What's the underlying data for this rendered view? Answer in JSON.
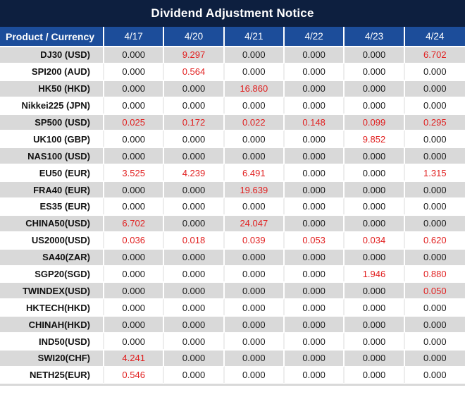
{
  "title": "Dividend Adjustment Notice",
  "colors": {
    "title_bar_bg": "#0d1f3f",
    "header_row_bg": "#1c4d9a",
    "alt_row_bg": "#d9d9d9",
    "nonzero_value_red": "#e11f1f",
    "zero_value_text": "#1a1a1a"
  },
  "table": {
    "product_header": "Product / Currency",
    "date_headers": [
      "4/17",
      "4/20",
      "4/21",
      "4/22",
      "4/23",
      "4/24"
    ],
    "rows": [
      {
        "product": "DJ30 (USD)",
        "values": [
          "0.000",
          "9.297",
          "0.000",
          "0.000",
          "0.000",
          "6.702"
        ]
      },
      {
        "product": "SPI200 (AUD)",
        "values": [
          "0.000",
          "0.564",
          "0.000",
          "0.000",
          "0.000",
          "0.000"
        ]
      },
      {
        "product": "HK50 (HKD)",
        "values": [
          "0.000",
          "0.000",
          "16.860",
          "0.000",
          "0.000",
          "0.000"
        ]
      },
      {
        "product": "Nikkei225 (JPN)",
        "values": [
          "0.000",
          "0.000",
          "0.000",
          "0.000",
          "0.000",
          "0.000"
        ]
      },
      {
        "product": "SP500 (USD)",
        "values": [
          "0.025",
          "0.172",
          "0.022",
          "0.148",
          "0.099",
          "0.295"
        ]
      },
      {
        "product": "UK100 (GBP)",
        "values": [
          "0.000",
          "0.000",
          "0.000",
          "0.000",
          "9.852",
          "0.000"
        ]
      },
      {
        "product": "NAS100 (USD)",
        "values": [
          "0.000",
          "0.000",
          "0.000",
          "0.000",
          "0.000",
          "0.000"
        ]
      },
      {
        "product": "EU50 (EUR)",
        "values": [
          "3.525",
          "4.239",
          "6.491",
          "0.000",
          "0.000",
          "1.315"
        ]
      },
      {
        "product": "FRA40 (EUR)",
        "values": [
          "0.000",
          "0.000",
          "19.639",
          "0.000",
          "0.000",
          "0.000"
        ]
      },
      {
        "product": "ES35 (EUR)",
        "values": [
          "0.000",
          "0.000",
          "0.000",
          "0.000",
          "0.000",
          "0.000"
        ]
      },
      {
        "product": "CHINA50(USD)",
        "values": [
          "6.702",
          "0.000",
          "24.047",
          "0.000",
          "0.000",
          "0.000"
        ]
      },
      {
        "product": "US2000(USD)",
        "values": [
          "0.036",
          "0.018",
          "0.039",
          "0.053",
          "0.034",
          "0.620"
        ]
      },
      {
        "product": "SA40(ZAR)",
        "values": [
          "0.000",
          "0.000",
          "0.000",
          "0.000",
          "0.000",
          "0.000"
        ]
      },
      {
        "product": "SGP20(SGD)",
        "values": [
          "0.000",
          "0.000",
          "0.000",
          "0.000",
          "1.946",
          "0.880"
        ]
      },
      {
        "product": "TWINDEX(USD)",
        "values": [
          "0.000",
          "0.000",
          "0.000",
          "0.000",
          "0.000",
          "0.050"
        ]
      },
      {
        "product": "HKTECH(HKD)",
        "values": [
          "0.000",
          "0.000",
          "0.000",
          "0.000",
          "0.000",
          "0.000"
        ]
      },
      {
        "product": "CHINAH(HKD)",
        "values": [
          "0.000",
          "0.000",
          "0.000",
          "0.000",
          "0.000",
          "0.000"
        ]
      },
      {
        "product": "IND50(USD)",
        "values": [
          "0.000",
          "0.000",
          "0.000",
          "0.000",
          "0.000",
          "0.000"
        ]
      },
      {
        "product": "SWI20(CHF)",
        "values": [
          "4.241",
          "0.000",
          "0.000",
          "0.000",
          "0.000",
          "0.000"
        ]
      },
      {
        "product": "NETH25(EUR)",
        "values": [
          "0.546",
          "0.000",
          "0.000",
          "0.000",
          "0.000",
          "0.000"
        ]
      }
    ]
  }
}
